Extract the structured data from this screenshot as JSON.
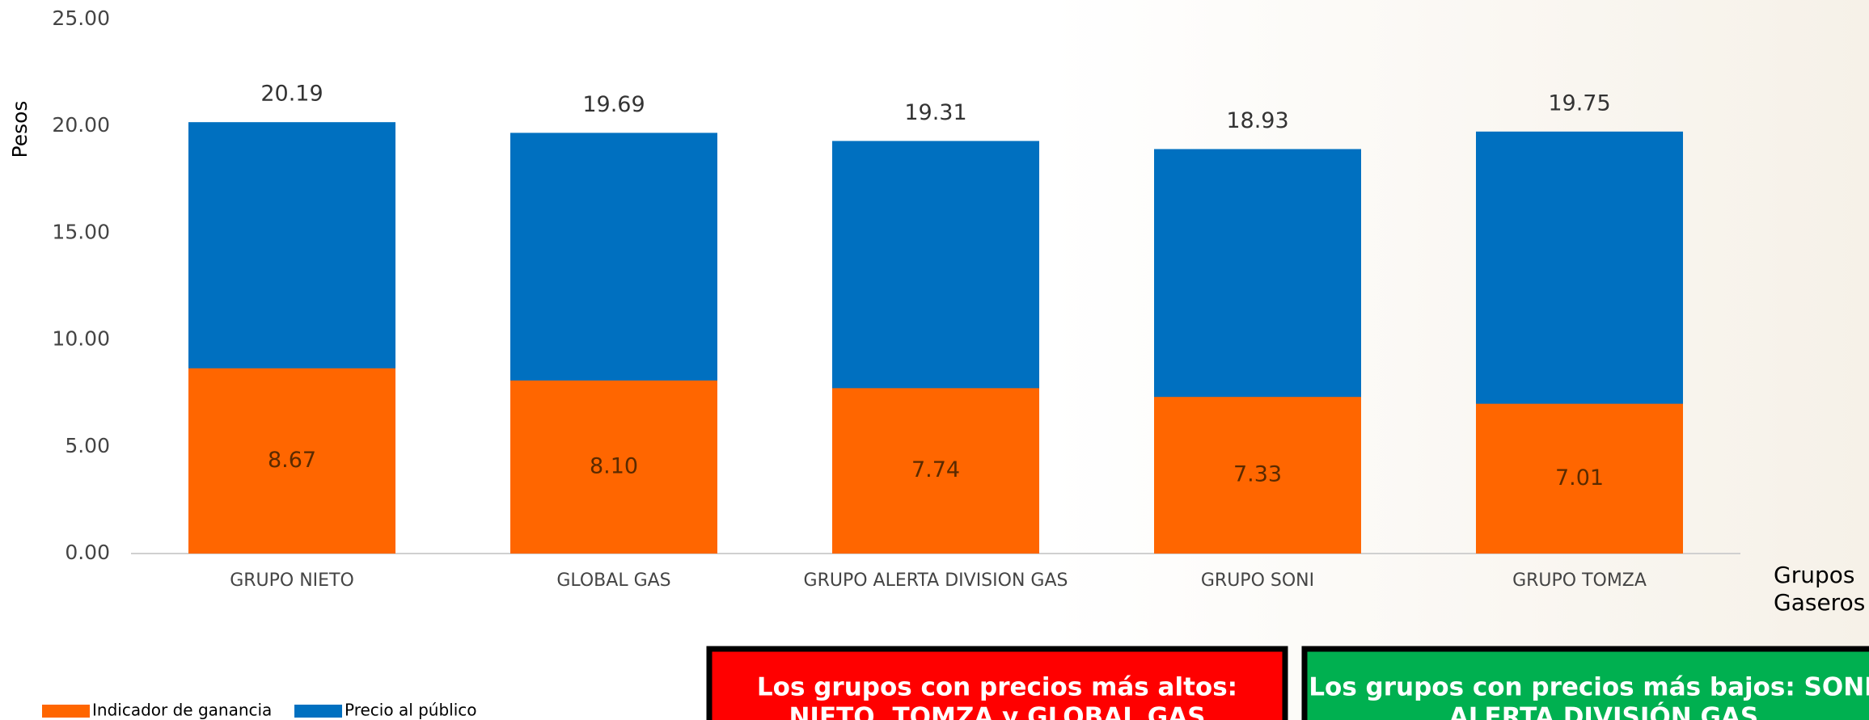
{
  "chart_data": {
    "type": "bar",
    "y_label": "Pesos",
    "x_label": "Grupos Gaseros",
    "categories": [
      "GRUPO NIETO",
      "GLOBAL GAS",
      "GRUPO ALERTA DIVISION GAS",
      "GRUPO SONI",
      "GRUPO TOMZA"
    ],
    "series": [
      {
        "name": "Precio al público",
        "color": "#0070c0",
        "values": [
          20.19,
          19.69,
          19.31,
          18.93,
          19.75
        ]
      },
      {
        "name": "Indicador de ganancia",
        "color": "#ff6600",
        "values": [
          8.67,
          8.1,
          7.74,
          7.33,
          7.01
        ],
        "value_labels": [
          "8.67",
          "8.10",
          "7.74",
          "7.33",
          "7.01"
        ]
      }
    ],
    "ylim": [
      0,
      25
    ],
    "yticks": [
      {
        "value": 0,
        "label": "0.00"
      },
      {
        "value": 5,
        "label": "5.00"
      },
      {
        "value": 10,
        "label": "10.00"
      },
      {
        "value": 15,
        "label": "15.00"
      },
      {
        "value": 20,
        "label": "20.00"
      },
      {
        "value": 25,
        "label": "25.00"
      }
    ],
    "notes": [
      {
        "lines": [
          "Los grupos con precios más altos:",
          "NIETO, TOMZA y GLOBAL GAS"
        ],
        "color": "#ff0000"
      },
      {
        "lines": [
          "Los grupos con precios más bajos: SONI y",
          "ALERTA DIVISIÓN GAS"
        ],
        "color": "#00b050"
      }
    ]
  }
}
